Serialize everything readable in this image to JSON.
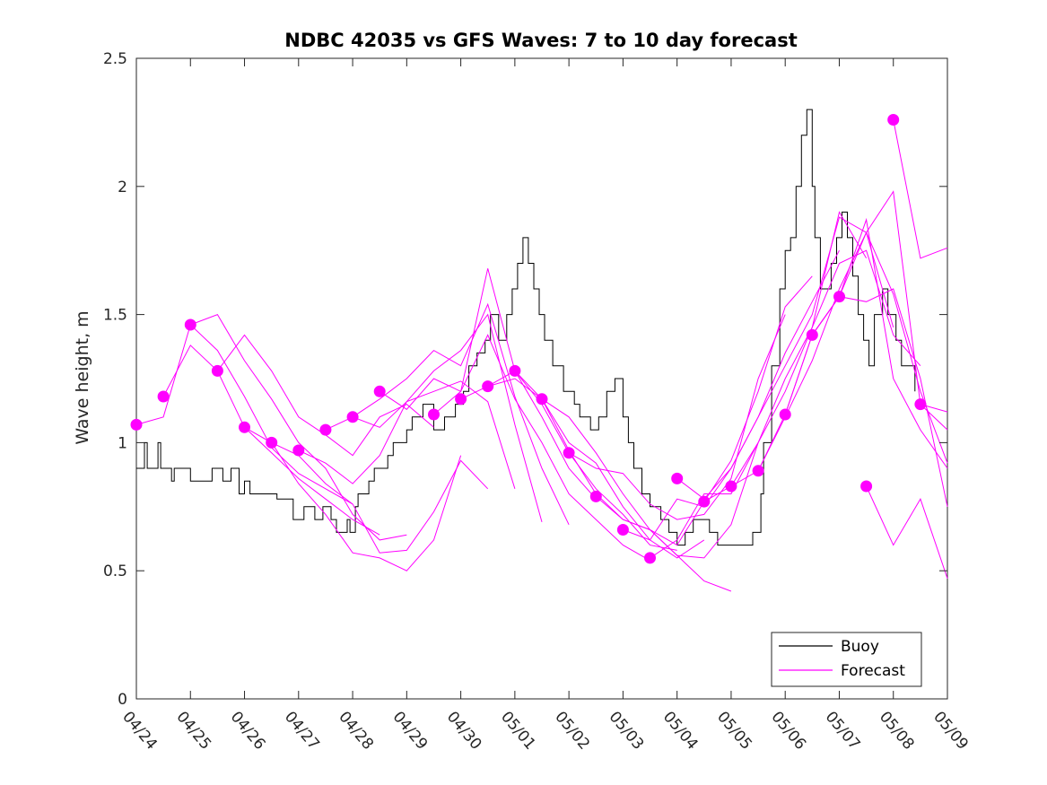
{
  "chart_data": {
    "type": "line",
    "title": "NDBC 42035 vs GFS Waves: 7 to 10 day forecast",
    "xlabel": "",
    "ylabel": "Wave height, m",
    "xlim": [
      0,
      15
    ],
    "ylim": [
      0,
      2.5
    ],
    "x_ticks": [
      0,
      1,
      2,
      3,
      4,
      5,
      6,
      7,
      8,
      9,
      10,
      11,
      12,
      13,
      14,
      15
    ],
    "x_tick_labels": [
      "04/24",
      "04/25",
      "04/26",
      "04/27",
      "04/28",
      "04/29",
      "04/30",
      "05/01",
      "05/02",
      "05/03",
      "05/04",
      "05/05",
      "05/06",
      "05/07",
      "05/08",
      "05/09"
    ],
    "y_ticks": [
      0,
      0.5,
      1,
      1.5,
      2,
      2.5
    ],
    "y_tick_labels": [
      "0",
      "0.5",
      "1",
      "1.5",
      "2",
      "2.5"
    ],
    "grid": false,
    "legend_position": "bottom-right",
    "legend": [
      "Buoy",
      "Forecast"
    ],
    "colors": {
      "buoy": "#000000",
      "forecast": "#ff00ff",
      "axis": "#262626"
    },
    "buoy": {
      "name": "Buoy",
      "x": [
        0,
        0.15,
        0.2,
        0.4,
        0.45,
        0.65,
        0.7,
        0.95,
        1.0,
        1.4,
        1.6,
        1.75,
        1.9,
        2.0,
        2.1,
        2.4,
        2.6,
        2.9,
        3.1,
        3.3,
        3.45,
        3.6,
        3.7,
        3.9,
        3.95,
        4.05,
        4.1,
        4.3,
        4.4,
        4.65,
        4.75,
        5.0,
        5.1,
        5.3,
        5.5,
        5.7,
        5.9,
        6.05,
        6.15,
        6.3,
        6.45,
        6.55,
        6.7,
        6.85,
        6.95,
        7.05,
        7.15,
        7.25,
        7.35,
        7.45,
        7.55,
        7.7,
        7.9,
        8.1,
        8.2,
        8.4,
        8.55,
        8.7,
        8.85,
        9.0,
        9.1,
        9.2,
        9.35,
        9.5,
        9.7,
        9.85,
        10.0,
        10.15,
        10.3,
        10.5,
        10.6,
        10.75,
        10.9,
        11.05,
        11.2,
        11.4,
        11.55,
        11.6,
        11.75,
        11.9,
        12.0,
        12.1,
        12.2,
        12.3,
        12.4,
        12.5,
        12.55,
        12.65,
        12.75,
        12.85,
        12.95,
        13.05,
        13.15,
        13.25,
        13.35,
        13.45,
        13.55,
        13.65,
        13.8,
        13.9,
        14.05,
        14.15,
        14.25,
        14.4
      ],
      "y": [
        0.9,
        1.0,
        0.9,
        1.0,
        0.9,
        0.85,
        0.9,
        0.9,
        0.85,
        0.9,
        0.85,
        0.9,
        0.8,
        0.85,
        0.8,
        0.8,
        0.78,
        0.7,
        0.75,
        0.7,
        0.75,
        0.7,
        0.65,
        0.7,
        0.65,
        0.75,
        0.8,
        0.85,
        0.9,
        0.95,
        1.0,
        1.05,
        1.1,
        1.15,
        1.05,
        1.1,
        1.15,
        1.2,
        1.3,
        1.35,
        1.4,
        1.5,
        1.4,
        1.5,
        1.6,
        1.7,
        1.8,
        1.7,
        1.6,
        1.5,
        1.4,
        1.3,
        1.2,
        1.15,
        1.1,
        1.05,
        1.1,
        1.2,
        1.25,
        1.1,
        1.0,
        0.9,
        0.8,
        0.75,
        0.7,
        0.65,
        0.6,
        0.65,
        0.7,
        0.7,
        0.65,
        0.6,
        0.6,
        0.6,
        0.6,
        0.65,
        0.8,
        1.0,
        1.3,
        1.6,
        1.75,
        1.8,
        2.0,
        2.2,
        2.3,
        2.0,
        1.8,
        1.6,
        1.6,
        1.7,
        1.8,
        1.9,
        1.8,
        1.65,
        1.5,
        1.4,
        1.3,
        1.5,
        1.6,
        1.5,
        1.4,
        1.3,
        1.3,
        1.2
      ]
    },
    "forecast_series": [
      {
        "x": [
          0,
          0.5,
          1.0,
          1.5,
          2.0,
          2.5,
          3.0,
          3.5,
          4.0
        ],
        "y": [
          1.07,
          1.1,
          1.46,
          1.36,
          1.18,
          0.98,
          0.88,
          0.82,
          0.76
        ]
      },
      {
        "x": [
          0.5,
          1.0,
          1.5,
          2.0,
          2.5,
          3.0,
          3.5,
          4.0,
          4.5
        ],
        "y": [
          1.18,
          1.38,
          1.28,
          1.06,
          0.96,
          0.86,
          0.78,
          0.7,
          0.64
        ]
      },
      {
        "x": [
          1.0,
          1.5,
          2.0,
          2.5,
          3.0,
          3.5,
          4.0,
          4.5,
          5.0
        ],
        "y": [
          1.46,
          1.5,
          1.32,
          1.17,
          1.0,
          0.9,
          0.72,
          0.62,
          0.64
        ]
      },
      {
        "x": [
          1.5,
          2.0,
          2.5,
          3.0,
          3.5,
          4.0,
          4.5,
          5.0,
          5.5
        ],
        "y": [
          1.28,
          1.42,
          1.28,
          1.1,
          1.03,
          0.95,
          1.1,
          1.15,
          1.06
        ]
      },
      {
        "x": [
          2.0,
          2.5,
          3.0,
          3.5,
          4.0,
          4.5,
          5.0,
          5.5,
          6.0
        ],
        "y": [
          1.06,
          1.0,
          0.84,
          0.72,
          0.57,
          0.55,
          0.5,
          0.62,
          0.95
        ]
      },
      {
        "x": [
          2.5,
          3.0,
          3.5,
          4.0,
          4.5,
          5.0,
          5.5,
          6.0,
          6.5
        ],
        "y": [
          1.0,
          0.95,
          0.84,
          0.76,
          0.57,
          0.58,
          0.73,
          0.93,
          0.82
        ]
      },
      {
        "x": [
          3.0,
          3.5,
          4.0,
          4.5,
          5.0,
          5.5,
          6.0,
          6.5,
          7.0
        ],
        "y": [
          0.97,
          0.92,
          0.84,
          0.95,
          1.16,
          1.2,
          1.24,
          1.16,
          0.82
        ]
      },
      {
        "x": [
          3.5,
          4.0,
          4.5,
          5.0,
          5.5,
          6.0,
          6.5,
          7.0,
          7.5
        ],
        "y": [
          1.05,
          1.1,
          1.06,
          1.16,
          1.28,
          1.36,
          1.5,
          1.07,
          0.69
        ]
      },
      {
        "x": [
          4.0,
          4.5,
          5.0,
          5.5,
          6.0,
          6.5,
          7.0,
          7.5,
          8.0
        ],
        "y": [
          1.1,
          1.17,
          1.25,
          1.36,
          1.3,
          1.54,
          1.18,
          0.9,
          0.68
        ]
      },
      {
        "x": [
          4.5,
          5.0,
          5.5,
          6.0,
          6.5,
          7.0,
          7.5,
          8.0,
          8.5
        ],
        "y": [
          1.2,
          1.13,
          1.25,
          1.2,
          1.68,
          1.28,
          1.1,
          0.9,
          0.78
        ]
      },
      {
        "x": [
          5.5,
          6.0,
          6.5,
          7.0,
          7.5,
          8.0,
          8.5,
          9.0,
          9.5
        ],
        "y": [
          1.11,
          1.2,
          1.42,
          1.17,
          1.0,
          0.8,
          0.7,
          0.6,
          0.54
        ]
      },
      {
        "x": [
          6.0,
          6.5,
          7.0,
          7.5,
          8.0,
          8.5,
          9.0,
          9.5,
          10.0
        ],
        "y": [
          1.17,
          1.22,
          1.28,
          1.15,
          0.96,
          0.82,
          0.72,
          0.6,
          0.58
        ]
      },
      {
        "x": [
          6.5,
          7.0,
          7.5,
          8.0,
          8.5,
          9.0,
          9.5,
          10.0,
          10.5
        ],
        "y": [
          1.22,
          1.25,
          1.17,
          1.0,
          0.92,
          0.75,
          0.62,
          0.55,
          0.62
        ]
      },
      {
        "x": [
          7.0,
          7.5,
          8.0,
          8.5,
          9.0,
          9.5,
          10.0,
          10.5,
          11.0
        ],
        "y": [
          1.28,
          1.17,
          0.97,
          0.8,
          0.7,
          0.66,
          0.56,
          0.46,
          0.42
        ]
      },
      {
        "x": [
          7.5,
          8.0,
          8.5,
          9.0,
          9.5,
          10.0,
          10.5,
          11.0,
          11.5
        ],
        "y": [
          1.17,
          1.1,
          0.96,
          0.8,
          0.66,
          0.56,
          0.55,
          0.68,
          1.0
        ]
      },
      {
        "x": [
          8.0,
          8.5,
          9.0,
          9.5,
          10.0,
          10.5,
          11.0,
          11.5,
          12.0
        ],
        "y": [
          0.96,
          0.9,
          0.88,
          0.76,
          0.7,
          0.72,
          0.86,
          1.25,
          1.5
        ]
      },
      {
        "x": [
          8.5,
          9.0,
          9.5,
          10.0,
          10.5,
          11.0,
          11.5,
          12.0,
          12.5
        ],
        "y": [
          0.79,
          0.7,
          0.66,
          0.6,
          0.77,
          0.93,
          1.2,
          1.53,
          1.65
        ]
      },
      {
        "x": [
          9.0,
          9.5,
          10.0,
          10.5,
          11.0,
          11.5,
          12.0,
          12.5,
          13.0
        ],
        "y": [
          0.66,
          0.62,
          0.78,
          0.75,
          0.9,
          1.1,
          1.35,
          1.55,
          1.75
        ]
      },
      {
        "x": [
          9.5,
          10.0,
          10.5,
          11.0,
          11.5,
          12.0,
          12.5,
          13.0,
          13.5
        ],
        "y": [
          0.55,
          0.62,
          0.8,
          0.8,
          1.0,
          1.25,
          1.45,
          1.9,
          1.72
        ]
      },
      {
        "x": [
          10.0,
          10.5,
          11.0,
          11.5,
          12.0,
          12.5,
          13.0,
          13.5,
          14.0
        ],
        "y": [
          0.86,
          0.78,
          0.9,
          1.1,
          1.3,
          1.5,
          1.88,
          1.82,
          1.45
        ]
      },
      {
        "x": [
          10.5,
          11.0,
          11.5,
          12.0,
          12.5,
          13.0,
          13.5,
          14.0,
          14.5
        ],
        "y": [
          0.77,
          0.83,
          1.0,
          1.2,
          1.45,
          1.7,
          1.75,
          1.42,
          1.3
        ]
      },
      {
        "x": [
          11.0,
          11.5,
          12.0,
          12.5,
          13.0,
          13.5,
          14.0,
          14.5,
          15.0
        ],
        "y": [
          0.83,
          0.89,
          1.1,
          1.32,
          1.6,
          1.82,
          1.58,
          1.2,
          0.92
        ]
      },
      {
        "x": [
          11.5,
          12.0,
          12.5,
          13.0,
          13.5,
          14.0,
          14.5,
          15.0
        ],
        "y": [
          0.89,
          1.11,
          1.42,
          1.57,
          1.55,
          1.6,
          1.25,
          0.75
        ]
      },
      {
        "x": [
          12.0,
          12.5,
          13.0,
          13.5,
          14.0,
          14.5,
          15.0
        ],
        "y": [
          1.11,
          1.42,
          1.57,
          1.87,
          1.25,
          1.05,
          0.9
        ]
      },
      {
        "x": [
          12.5,
          13.0,
          13.5,
          14.0,
          14.5,
          15.0
        ],
        "y": [
          1.42,
          1.57,
          1.82,
          1.98,
          1.15,
          1.05
        ]
      },
      {
        "x": [
          13.5,
          14.0,
          14.5,
          15.0
        ],
        "y": [
          0.83,
          0.6,
          0.78,
          0.47
        ]
      },
      {
        "x": [
          14.0,
          14.5,
          15.0
        ],
        "y": [
          2.26,
          1.72,
          1.76
        ]
      },
      {
        "x": [
          14.5,
          15.0
        ],
        "y": [
          1.15,
          1.12
        ]
      }
    ],
    "forecast_points": {
      "name": "Forecast",
      "x": [
        0,
        0.5,
        1.0,
        1.5,
        2.0,
        2.5,
        3.0,
        3.5,
        4.0,
        4.5,
        5.5,
        6.0,
        6.5,
        7.0,
        7.5,
        8.0,
        8.5,
        9.0,
        9.5,
        10.0,
        10.5,
        11.0,
        11.5,
        12.0,
        12.5,
        13.0,
        13.5,
        14.0,
        14.5
      ],
      "y": [
        1.07,
        1.18,
        1.46,
        1.28,
        1.06,
        1.0,
        0.97,
        1.05,
        1.1,
        1.2,
        1.11,
        1.17,
        1.22,
        1.28,
        1.17,
        0.96,
        0.79,
        0.66,
        0.55,
        0.86,
        0.77,
        0.83,
        0.89,
        1.11,
        1.42,
        1.57,
        0.83,
        2.26,
        1.15
      ]
    }
  }
}
